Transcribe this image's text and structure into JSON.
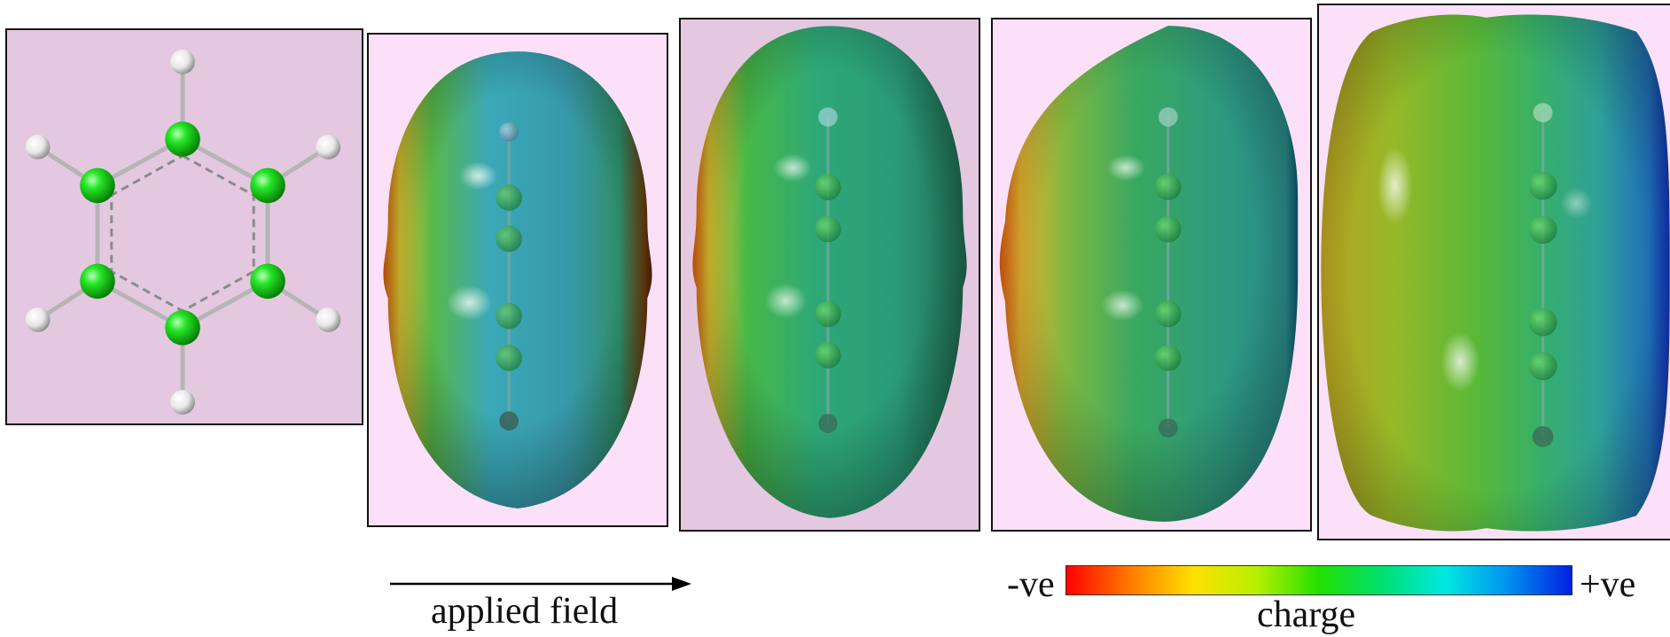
{
  "arrow": {
    "label": "applied field"
  },
  "colorbar": {
    "label": "charge",
    "min_label": "-ve",
    "max_label": "+ve",
    "stops": [
      "#ff0000",
      "#ff7a00",
      "#ffe000",
      "#b8f000",
      "#22e000",
      "#00e070",
      "#00e8e0",
      "#0090f0",
      "#0020e0"
    ]
  },
  "colors": {
    "panel_background": "#e4c8e0",
    "panel_background_light": "#fbe0f8",
    "carbon_atom": "#1fe01f",
    "hydrogen_atom": "#f4f4f4",
    "bond": "#b8b8b8"
  },
  "panels": [
    {
      "id": "molecule",
      "icon": "benzene-structure-icon"
    },
    {
      "id": "surface-1",
      "icon": "electrostatic-potential-surface"
    },
    {
      "id": "surface-2",
      "icon": "electrostatic-potential-surface"
    },
    {
      "id": "surface-3",
      "icon": "electrostatic-potential-surface"
    },
    {
      "id": "surface-4",
      "icon": "electrostatic-potential-surface"
    }
  ]
}
